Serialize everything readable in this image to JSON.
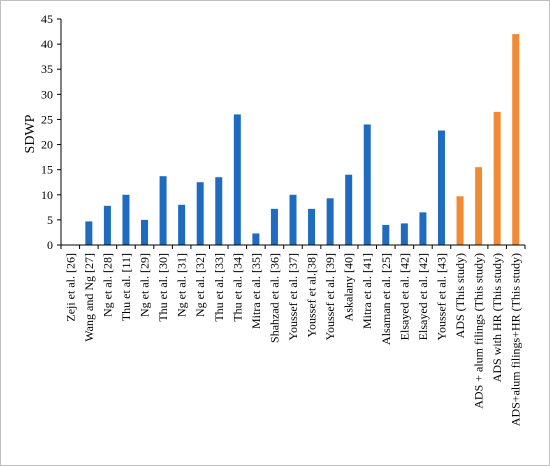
{
  "chart_data": {
    "type": "bar",
    "title": "",
    "xlabel": "",
    "ylabel": "SDWP",
    "ylim": [
      0,
      45
    ],
    "yticks": [
      0,
      5,
      10,
      15,
      20,
      25,
      30,
      35,
      40,
      45
    ],
    "grid": false,
    "legend": "none",
    "categories": [
      "Zeji et al. [26]",
      "Wang and Ng [27]",
      "Ng et al. [28]",
      "Thu et al. [11]",
      "Ng et al. [29]",
      "Thu et al. [30]",
      "Ng et al. [31]",
      "Ng et al. [32]",
      "Thu et al. [33]",
      "Thu et al. [34]",
      "Mitra et al. [35]",
      "Shahzad et al. [36]",
      "Youssef et al. [37]",
      "Youssef et al.[38]",
      "Youssef et al. [39]",
      "Askalany [40]",
      "Mitra et al. [41]",
      "Alsaman et al. [25]",
      "Elsayed et al. [42]",
      "Elsayed et al. [42]",
      "Youssef et al. [43]",
      "ADS (This study)",
      "ADS + alum filings (This study)",
      "ADS with HR (This study)",
      "ADS+alum filings+HR (This study)"
    ],
    "values": [
      0,
      4.7,
      7.8,
      10,
      5,
      13.7,
      8,
      12.5,
      13.5,
      26,
      2.3,
      7.2,
      10,
      7.2,
      9.3,
      14,
      24,
      4,
      4.3,
      6.5,
      22.8,
      9.7,
      15.5,
      26.5,
      42
    ],
    "colors": {
      "literature": "#1f6bbf",
      "this_study": "#f08a35"
    },
    "this_study_from_index": 21
  }
}
